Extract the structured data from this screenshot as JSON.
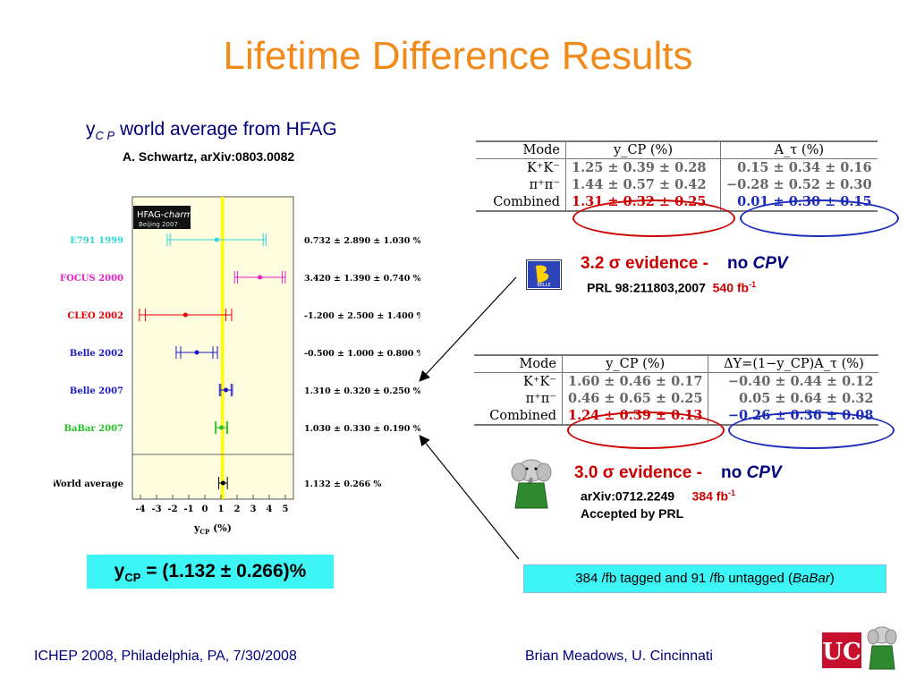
{
  "title": "Lifetime Difference Results",
  "subtitle": {
    "y": "y",
    "cp": "C P",
    "rest": "world average from HFAG"
  },
  "reference": "A. Schwartz, arXiv:0803.0082",
  "hfag_plot": {
    "badge": "HFAG-",
    "badge_em": "charm",
    "badge_sub": "Beijing 2007",
    "xlabel": "y",
    "xlabel_sub": "CP",
    "xlabel_unit": "(%)",
    "chart_data": {
      "type": "scatter",
      "xlim": [
        -4.5,
        5.5
      ],
      "ticks": [
        "-4",
        "-3",
        "-2",
        "-1",
        "0",
        "1",
        "2",
        "3",
        "4",
        "5"
      ],
      "tick_values": [
        -4,
        -3,
        -2,
        -1,
        0,
        1,
        2,
        3,
        4,
        5
      ],
      "band": [
        1.0,
        1.2
      ],
      "grid": false,
      "experiments": [
        {
          "name": "E791 1999",
          "value": 0.732,
          "stat": 2.89,
          "syst": 1.03,
          "text": "0.732 ± 2.890 ± 1.030 %",
          "color": "#33d6d6"
        },
        {
          "name": "FOCUS 2000",
          "value": 3.42,
          "stat": 1.39,
          "syst": 0.74,
          "text": "3.420 ± 1.390 ± 0.740 %",
          "color": "#e61ec8"
        },
        {
          "name": "CLEO 2002",
          "value": -1.2,
          "stat": 2.5,
          "syst": 1.4,
          "text": "-1.200 ± 2.500 ± 1.400 %",
          "color": "#e60000"
        },
        {
          "name": "Belle 2002",
          "value": -0.5,
          "stat": 1.0,
          "syst": 0.8,
          "text": "-0.500 ± 1.000 ± 0.800 %",
          "color": "#1818c8"
        },
        {
          "name": "Belle 2007",
          "value": 1.31,
          "stat": 0.32,
          "syst": 0.25,
          "text": "1.310 ± 0.320 ± 0.250 %",
          "color": "#1818c8"
        },
        {
          "name": "BaBar 2007",
          "value": 1.03,
          "stat": 0.33,
          "syst": 0.19,
          "text": "1.030 ± 0.330 ± 0.190 %",
          "color": "#22c322"
        }
      ],
      "world_average": {
        "name": "World average",
        "value": 1.132,
        "err": 0.266,
        "text": "1.132 ± 0.266 %",
        "color": "#000000"
      }
    }
  },
  "belle_table": {
    "header": [
      "Mode",
      "y_CP (%)",
      "A_τ (%)"
    ],
    "rows": [
      {
        "mode": "K⁺K⁻",
        "y": "1.25 ± 0.39 ± 0.28",
        "a": "0.15 ± 0.34 ± 0.16"
      },
      {
        "mode": "π⁺π⁻",
        "y": "1.44 ± 0.57 ± 0.42",
        "a": "−0.28 ± 0.52 ± 0.30"
      },
      {
        "mode": "Combined",
        "y": "1.31 ± 0.32 ± 0.25",
        "a": "0.01 ± 0.30 ± 0.15"
      }
    ]
  },
  "belle_result": {
    "evidence_num": "3.2",
    "sigma": "σ",
    "evidence_word": "evidence",
    "dash": "-",
    "no": "no",
    "cpv": "CPV",
    "prl": "PRL 98:211803,2007",
    "lumi": "540 fb",
    "lumi_exp": "-1"
  },
  "babar_table": {
    "header": [
      "Mode",
      "y_CP (%)",
      "ΔY=(1−y_CP)A_τ (%)"
    ],
    "rows": [
      {
        "mode": "K⁺K⁻",
        "y": "1.60 ± 0.46 ± 0.17",
        "a": "−0.40 ± 0.44 ± 0.12"
      },
      {
        "mode": "π⁺π⁻",
        "y": "0.46 ± 0.65 ± 0.25",
        "a": "0.05 ± 0.64 ± 0.32"
      },
      {
        "mode": "Combined",
        "y": "1.24 ± 0.39 ± 0.13",
        "a": "−0.26 ± 0.36 ± 0.08"
      }
    ]
  },
  "babar_result": {
    "evidence_num": "3.0",
    "sigma": "σ",
    "evidence_word": "evidence",
    "dash": "-",
    "no": "no",
    "cpv": "CPV",
    "arxiv": "arXiv:0712.2249",
    "lumi": "384 fb",
    "lumi_exp": "-1",
    "accepted": "Accepted by PRL"
  },
  "ycp_result": {
    "y": "y",
    "sub": "CP",
    "rest": " = (1.132 ± 0.266)%"
  },
  "tagged_note": {
    "text": "384 /fb tagged and 91 /fb untagged (",
    "em": "BaBar",
    "close": ")"
  },
  "footer": {
    "left": "ICHEP 2008, Philadelphia, PA, 7/30/2008",
    "right": "Brian Meadows, U. Cincinnati"
  },
  "logos": {
    "belle_text": "BELLE",
    "uc": "UC"
  },
  "colors": {
    "title": "#f28a1a",
    "navy": "#00007e",
    "red": "#cc0000",
    "blue": "#1b2bb8",
    "cyan_box": "#3df5f5",
    "plot_bg": "#fffde0",
    "band": "#ffff00"
  }
}
